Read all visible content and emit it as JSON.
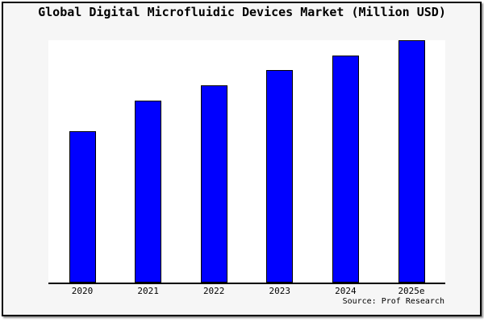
{
  "chart_data": {
    "type": "bar",
    "title": "Global Digital Microfluidic Devices Market (Million USD)",
    "categories": [
      "2020",
      "2021",
      "2022",
      "2023",
      "2024",
      "2025e"
    ],
    "values": [
      62.5,
      75.0,
      81.4,
      87.7,
      93.7,
      100
    ],
    "value_scale_note": "no y-axis shown; bar heights normalized so 2025e = 100",
    "xlabel": "",
    "ylabel": "",
    "ylim": [
      0,
      100
    ],
    "grid": false,
    "legend": false
  },
  "footer": {
    "source": "Source: Prof Research"
  },
  "colors": {
    "background": "#f6f6f6",
    "plot_background": "#ffffff",
    "frame_border": "#000000",
    "axis": "#000000",
    "bar_fill": "#0000ff",
    "bar_border": "#000000",
    "text": "#000000"
  }
}
